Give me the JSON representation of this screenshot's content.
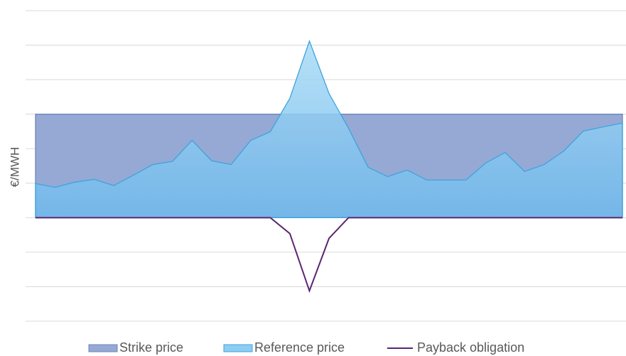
{
  "chart_data": {
    "type": "area",
    "y_label": "€/MWH",
    "categories": [
      null,
      null,
      null,
      null,
      null,
      null,
      null,
      null,
      null,
      null,
      null,
      null,
      null,
      null,
      null,
      null,
      null,
      null,
      null,
      null,
      null,
      null,
      null,
      null,
      null,
      null,
      null,
      null,
      null,
      null,
      null
    ],
    "ylim": [
      -3,
      6
    ],
    "yticks": [
      -3,
      -2,
      -1,
      0,
      1,
      2,
      3,
      4,
      5,
      6
    ],
    "grid": true,
    "legend": "bottom",
    "series": [
      {
        "name": "Strike price",
        "color": "#95a9d4",
        "kind": "area",
        "values": [
          3,
          3,
          3,
          3,
          3,
          3,
          3,
          3,
          3,
          3,
          3,
          3,
          3,
          3,
          3,
          3,
          3,
          3,
          3,
          3,
          3,
          3,
          3,
          3,
          3,
          3,
          3,
          3,
          3,
          3,
          3
        ]
      },
      {
        "name": "Reference price",
        "color": "#7cc3ee",
        "kind": "area",
        "values": [
          0.99,
          0.88,
          1.03,
          1.11,
          0.93,
          1.23,
          1.54,
          1.63,
          2.24,
          1.65,
          1.54,
          2.24,
          2.49,
          3.46,
          5.12,
          3.6,
          2.59,
          1.46,
          1.19,
          1.38,
          1.09,
          1.09,
          1.09,
          1.58,
          1.89,
          1.34,
          1.54,
          1.93,
          2.51,
          2.63,
          2.74
        ]
      },
      {
        "name": "Payback obligation",
        "color": "#5b2670",
        "kind": "line",
        "values": [
          0,
          0,
          0,
          0,
          0,
          0,
          0,
          0,
          0,
          0,
          0,
          0,
          0,
          -0.46,
          -2.12,
          -0.6,
          0,
          0,
          0,
          0,
          0,
          0,
          0,
          0,
          0,
          0,
          0,
          0,
          0,
          0,
          0
        ]
      }
    ]
  }
}
